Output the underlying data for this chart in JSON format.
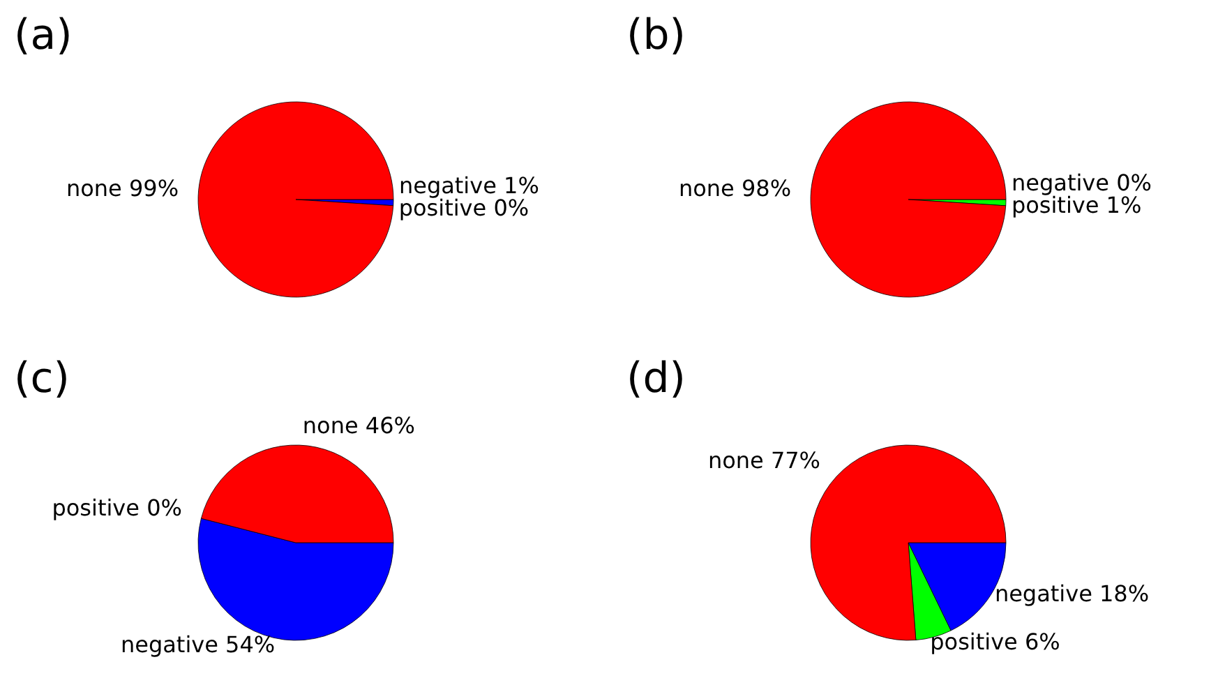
{
  "chart_data": [
    {
      "type": "pie",
      "title": "(a)",
      "categories": [
        "negative",
        "positive",
        "none"
      ],
      "values": [
        1,
        0,
        99
      ],
      "value_labels": [
        "1%",
        "0%",
        "99%"
      ],
      "colors": [
        "#0000ff",
        "#00ff00",
        "#ff0000"
      ]
    },
    {
      "type": "pie",
      "title": "(b)",
      "categories": [
        "negative",
        "positive",
        "none"
      ],
      "values": [
        0,
        1,
        98
      ],
      "value_labels": [
        "0%",
        "1%",
        "98%"
      ],
      "colors": [
        "#0000ff",
        "#00ff00",
        "#ff0000"
      ]
    },
    {
      "type": "pie",
      "title": "(c)",
      "categories": [
        "negative",
        "positive",
        "none"
      ],
      "values": [
        54,
        0,
        46
      ],
      "value_labels": [
        "54%",
        "0%",
        "46%"
      ],
      "colors": [
        "#0000ff",
        "#00ff00",
        "#ff0000"
      ]
    },
    {
      "type": "pie",
      "title": "(d)",
      "categories": [
        "negative",
        "positive",
        "none"
      ],
      "values": [
        18,
        6,
        77
      ],
      "value_labels": [
        "18%",
        "6%",
        "77%"
      ],
      "colors": [
        "#0000ff",
        "#00ff00",
        "#ff0000"
      ]
    }
  ]
}
